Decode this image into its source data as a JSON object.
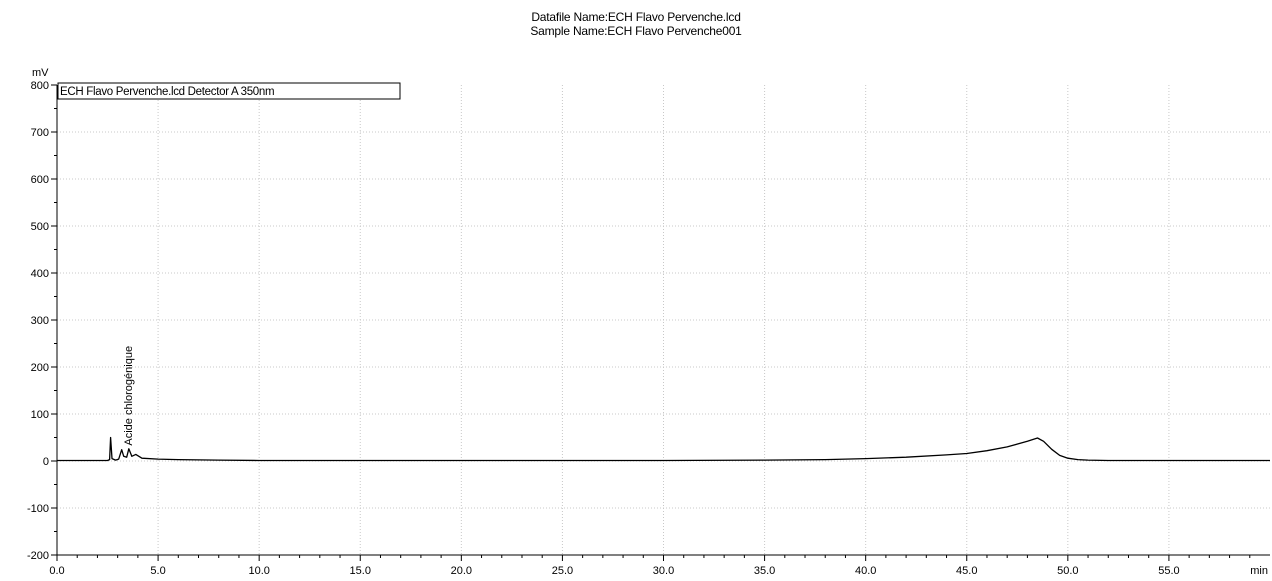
{
  "header": {
    "datafile_line": "Datafile Name:ECH Flavo Pervenche.lcd",
    "sample_line": "Sample Name:ECH Flavo Pervenche001"
  },
  "chart_data": {
    "type": "line",
    "title": "",
    "xlabel": "min",
    "ylabel": "mV",
    "xlim": [
      0,
      60
    ],
    "ylim": [
      -200,
      800
    ],
    "grid": true,
    "x_ticks": [
      0,
      5,
      10,
      15,
      20,
      25,
      30,
      35,
      40,
      45,
      50,
      55
    ],
    "x_tick_labels": [
      "0.0",
      "5.0",
      "10.0",
      "15.0",
      "20.0",
      "25.0",
      "30.0",
      "35.0",
      "40.0",
      "45.0",
      "50.0",
      "55.0"
    ],
    "y_ticks": [
      -200,
      -100,
      0,
      100,
      200,
      300,
      400,
      500,
      600,
      700,
      800
    ],
    "y_tick_labels": [
      "-200",
      "-100",
      "0",
      "100",
      "200",
      "300",
      "400",
      "500",
      "600",
      "700",
      "800"
    ],
    "legend": {
      "text": "ECH Flavo Pervenche.lcd Detector A 350nm",
      "position": "top-left"
    },
    "colors": {
      "trace": "#000000",
      "grid": "#c8c8c8",
      "axis": "#000000"
    },
    "annotations": [
      {
        "text": "Acide chlorogénique",
        "x": 3.7,
        "y": 20,
        "orientation": "vertical"
      }
    ],
    "series": [
      {
        "points": [
          [
            0,
            1
          ],
          [
            2.5,
            1
          ],
          [
            2.6,
            3
          ],
          [
            2.65,
            50
          ],
          [
            2.72,
            5
          ],
          [
            2.9,
            2
          ],
          [
            3.05,
            4
          ],
          [
            3.2,
            24
          ],
          [
            3.3,
            10
          ],
          [
            3.45,
            8
          ],
          [
            3.55,
            26
          ],
          [
            3.7,
            10
          ],
          [
            3.9,
            14
          ],
          [
            4.2,
            6
          ],
          [
            5,
            4
          ],
          [
            6,
            3
          ],
          [
            8,
            2
          ],
          [
            10,
            1
          ],
          [
            15,
            1
          ],
          [
            20,
            1
          ],
          [
            25,
            1
          ],
          [
            30,
            1
          ],
          [
            35,
            2
          ],
          [
            38,
            3
          ],
          [
            40,
            5
          ],
          [
            42,
            8
          ],
          [
            44,
            13
          ],
          [
            45,
            16
          ],
          [
            46,
            22
          ],
          [
            47,
            30
          ],
          [
            48,
            42
          ],
          [
            48.5,
            49
          ],
          [
            48.8,
            42
          ],
          [
            49.2,
            25
          ],
          [
            49.6,
            12
          ],
          [
            50,
            6
          ],
          [
            50.5,
            3
          ],
          [
            51,
            2
          ],
          [
            52,
            1
          ],
          [
            55,
            1
          ],
          [
            60,
            1
          ]
        ]
      }
    ]
  }
}
